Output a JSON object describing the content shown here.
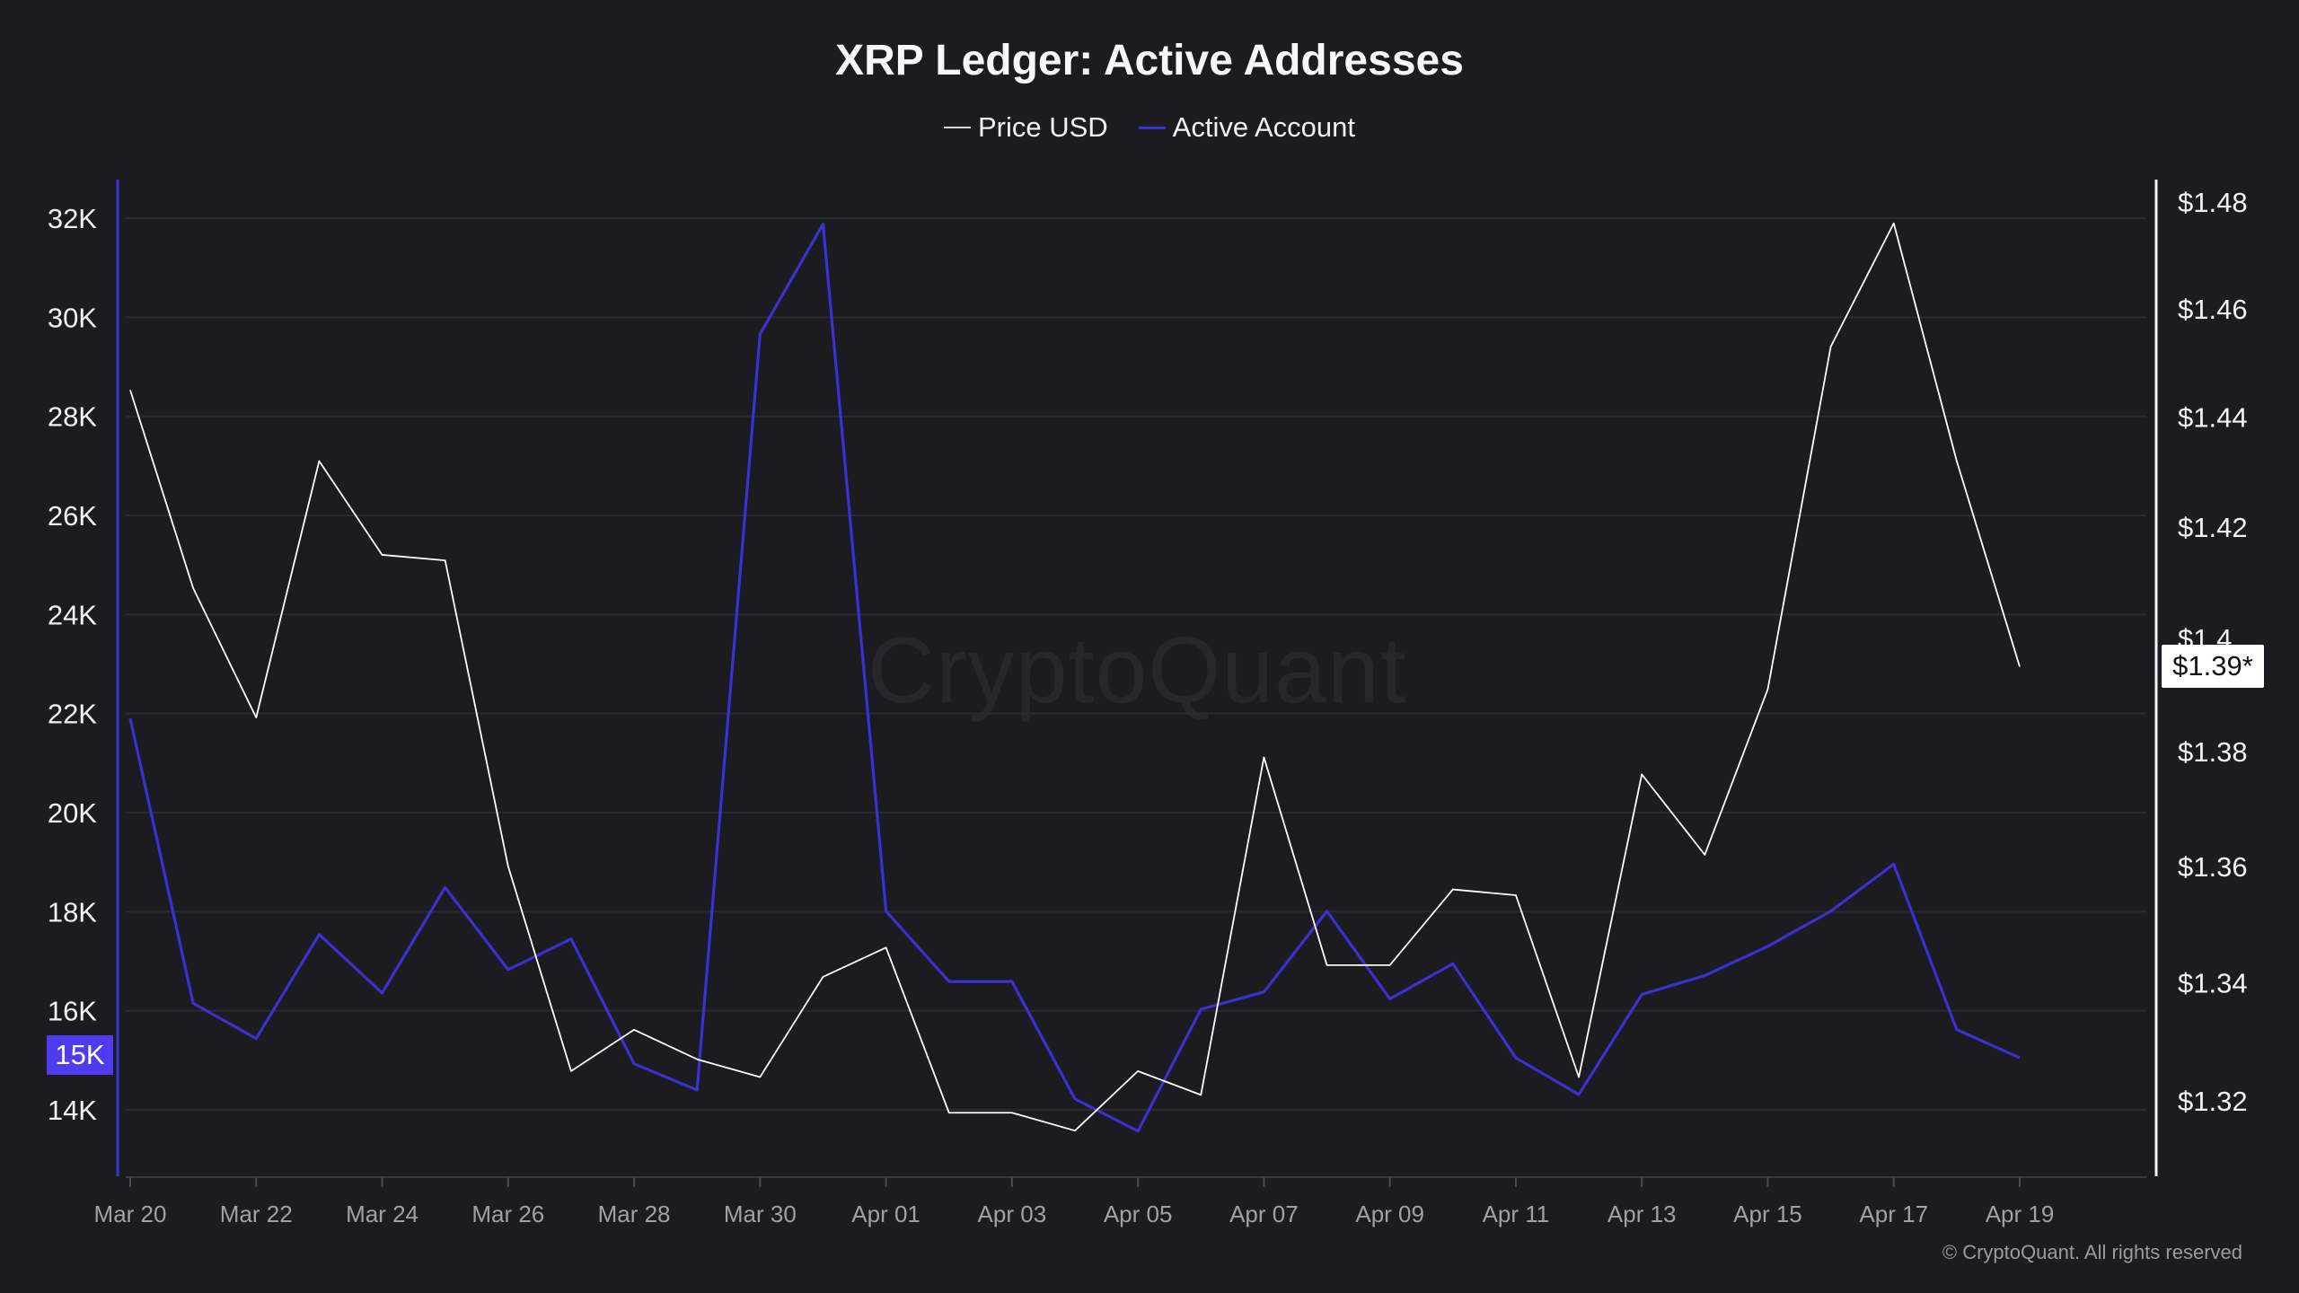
{
  "chart_data": {
    "type": "line",
    "title": "XRP Ledger: Active Addresses",
    "x": [
      "Mar 20",
      "Mar 21",
      "Mar 22",
      "Mar 23",
      "Mar 24",
      "Mar 25",
      "Mar 26",
      "Mar 27",
      "Mar 28",
      "Mar 29",
      "Mar 30",
      "Mar 31",
      "Apr 01",
      "Apr 02",
      "Apr 03",
      "Apr 04",
      "Apr 05",
      "Apr 06",
      "Apr 07",
      "Apr 08",
      "Apr 09",
      "Apr 10",
      "Apr 11",
      "Apr 12",
      "Apr 13",
      "Apr 14",
      "Apr 15",
      "Apr 16",
      "Apr 17",
      "Apr 18",
      "Apr 19"
    ],
    "x_tick_labels": [
      "Mar 20",
      "Mar 22",
      "Mar 24",
      "Mar 26",
      "Mar 28",
      "Mar 30",
      "Apr 01",
      "Apr 03",
      "Apr 05",
      "Apr 07",
      "Apr 09",
      "Apr 11",
      "Apr 13",
      "Apr 15",
      "Apr 17",
      "Apr 19"
    ],
    "series": [
      {
        "name": "Price USD",
        "axis": "right",
        "color": "#ffffff",
        "values": [
          1.445,
          1.409,
          1.386,
          1.432,
          1.415,
          1.414,
          1.36,
          1.325,
          1.332,
          1.327,
          1.324,
          1.341,
          1.346,
          1.318,
          1.318,
          1.315,
          1.325,
          1.321,
          1.379,
          1.343,
          1.343,
          1.356,
          1.355,
          1.324,
          1.376,
          1.362,
          1.391,
          1.453,
          1.476,
          1.432,
          1.395
        ]
      },
      {
        "name": "Active Account",
        "axis": "left",
        "color": "#3d2fd0",
        "values": [
          21900,
          16150,
          15440,
          17540,
          16360,
          18490,
          16830,
          17450,
          14930,
          14400,
          29660,
          31880,
          18010,
          16590,
          16590,
          14220,
          13570,
          16030,
          16380,
          18010,
          16240,
          16950,
          15050,
          14310,
          16330,
          16710,
          17300,
          18010,
          18960,
          15620,
          15050
        ]
      }
    ],
    "left_axis": {
      "ticks": [
        "14K",
        "16K",
        "18K",
        "20K",
        "22K",
        "24K",
        "26K",
        "28K",
        "30K",
        "32K"
      ],
      "tick_values": [
        14000,
        16000,
        18000,
        20000,
        22000,
        24000,
        26000,
        28000,
        30000,
        32000
      ],
      "ylim": [
        12700,
        32000
      ],
      "current_label": "15K",
      "current_color": "#4f3cf0"
    },
    "right_axis": {
      "scale": "log",
      "ticks": [
        "$1.32",
        "$1.34",
        "$1.36",
        "$1.38",
        "$1.4",
        "$1.42",
        "$1.44",
        "$1.46",
        "$1.48"
      ],
      "tick_values": [
        1.32,
        1.34,
        1.36,
        1.38,
        1.4,
        1.42,
        1.44,
        1.46,
        1.48
      ],
      "current_label": "$1.39*"
    },
    "grid": true,
    "legend_position": "top-center"
  },
  "watermark": "CryptoQuant",
  "copyright": "© CryptoQuant. All rights reserved"
}
